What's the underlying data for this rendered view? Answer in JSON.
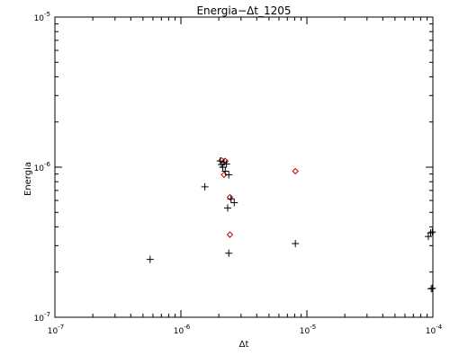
{
  "chart_data": {
    "type": "scatter",
    "title": "Energia−Δt_1205",
    "xlabel": "Δt",
    "ylabel": "Energia",
    "xscale": "log",
    "yscale": "log",
    "xlim": [
      1e-07,
      0.0001
    ],
    "ylim": [
      1e-07,
      1e-05
    ],
    "x_ticks": [
      {
        "value": 1e-07,
        "base": "10",
        "exp": "-7"
      },
      {
        "value": 1e-06,
        "base": "10",
        "exp": "-6"
      },
      {
        "value": 1e-05,
        "base": "10",
        "exp": "-5"
      },
      {
        "value": 0.0001,
        "base": "10",
        "exp": "-4"
      }
    ],
    "y_ticks": [
      {
        "value": 1e-07,
        "base": "10",
        "exp": "-7"
      },
      {
        "value": 1e-06,
        "base": "10",
        "exp": "-6"
      },
      {
        "value": 1e-05,
        "base": "10",
        "exp": "-5"
      }
    ],
    "grid": false,
    "legend": "none",
    "colors": {
      "plus": "#000000",
      "diamond": "#cc0000",
      "axis": "#000000"
    },
    "series": [
      {
        "marker": "plus",
        "points": [
          [
            5.7e-07,
            2.43e-07
          ],
          [
            1.55e-06,
            7.4e-07
          ],
          [
            2.05e-06,
            1.1e-06
          ],
          [
            2.1e-06,
            1.04e-06
          ],
          [
            2.15e-06,
            1e-06
          ],
          [
            2.2e-06,
            1.08e-06
          ],
          [
            2.25e-06,
            9.4e-07
          ],
          [
            2.3e-06,
            1.05e-06
          ],
          [
            2.4e-06,
            8.9e-07
          ],
          [
            2.35e-06,
            5.35e-07
          ],
          [
            2.5e-06,
            6.15e-07
          ],
          [
            2.65e-06,
            5.8e-07
          ],
          [
            2.4e-06,
            2.67e-07
          ],
          [
            8.1e-06,
            3.1e-07
          ],
          [
            9.2e-05,
            3.45e-07
          ],
          [
            9.6e-05,
            3.65e-07
          ],
          [
            9.9e-05,
            3.7e-07
          ],
          [
            9.7e-05,
            1.55e-07
          ],
          [
            9.9e-05,
            1.56e-07
          ]
        ]
      },
      {
        "marker": "diamond",
        "points": [
          [
            2.1e-06,
            1.11e-06
          ],
          [
            2.25e-06,
            1.1e-06
          ],
          [
            2.2e-06,
            8.9e-07
          ],
          [
            2.45e-06,
            6.3e-07
          ],
          [
            2.45e-06,
            3.55e-07
          ],
          [
            8.1e-06,
            9.4e-07
          ]
        ]
      }
    ]
  }
}
